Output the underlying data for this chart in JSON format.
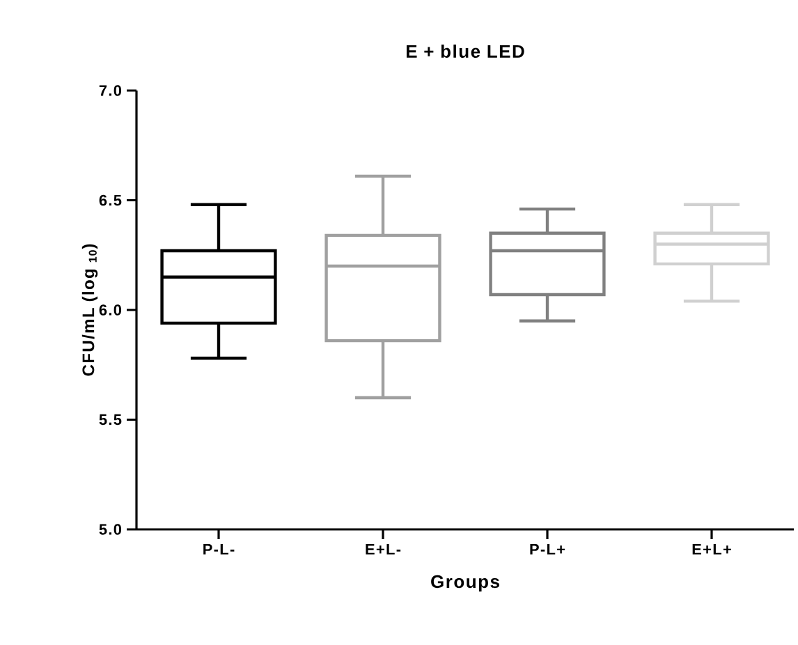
{
  "chart_data": {
    "type": "box",
    "title": "E + blue LED",
    "xlabel": "Groups",
    "ylabel": "CFU/mL (log $_{10}$)",
    "categories": [
      "P-L-",
      "E+L-",
      "P-L+",
      "E+L+"
    ],
    "boxes": [
      {
        "low": 5.78,
        "q1": 5.94,
        "median": 6.15,
        "q3": 6.27,
        "high": 6.48
      },
      {
        "low": 5.6,
        "q1": 5.86,
        "median": 6.2,
        "q3": 6.34,
        "high": 6.61
      },
      {
        "low": 5.95,
        "q1": 6.07,
        "median": 6.27,
        "q3": 6.35,
        "high": 6.46
      },
      {
        "low": 6.04,
        "q1": 6.21,
        "median": 6.3,
        "q3": 6.35,
        "high": 6.48
      }
    ],
    "colors": [
      "#000000",
      "#a0a0a0",
      "#808080",
      "#d0d0d0"
    ],
    "ylim": [
      5.0,
      7.0
    ],
    "yticks": [
      {
        "value": 5.0,
        "label": "5.0"
      },
      {
        "value": 5.5,
        "label": "5.5"
      },
      {
        "value": 6.0,
        "label": "6.0"
      },
      {
        "value": 6.5,
        "label": "6.5"
      },
      {
        "value": 7.0,
        "label": "7.0"
      }
    ]
  }
}
